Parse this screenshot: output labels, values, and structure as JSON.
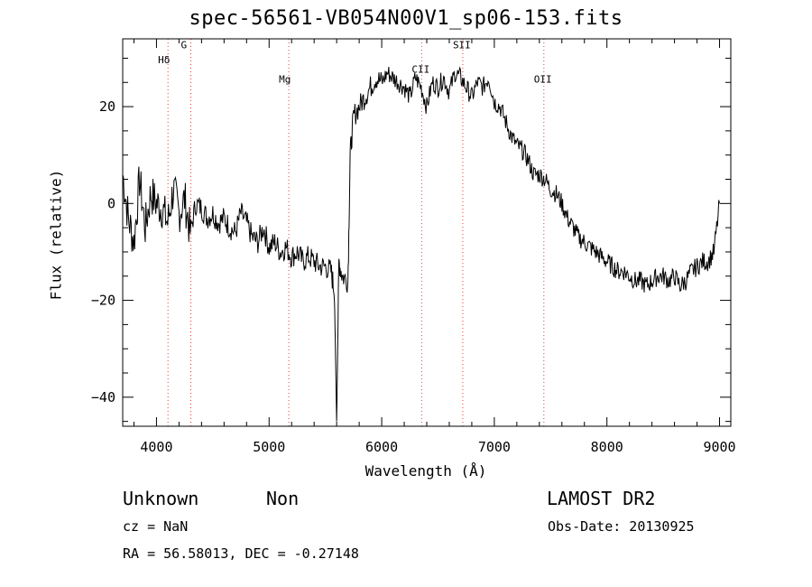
{
  "chart_data": {
    "type": "line",
    "title": "spec-56561-VB054N00V1_sp06-153.fits",
    "xlabel": "Wavelength (Å)",
    "ylabel": "Flux (relative)",
    "xlim": [
      3700,
      9100
    ],
    "ylim": [
      -46,
      34
    ],
    "xticks": [
      4000,
      5000,
      6000,
      7000,
      8000,
      9000
    ],
    "yticks": [
      -40,
      -20,
      0,
      20
    ],
    "series": [
      {
        "x": [
          3700,
          3750,
          3800,
          3850,
          3900,
          3950,
          4000,
          4050,
          4100,
          4150,
          4200,
          4250,
          4300,
          4350,
          4400,
          4450,
          4500,
          4550,
          4600,
          4650,
          4700,
          4750,
          4800,
          4850,
          4900,
          4950,
          5000,
          5050,
          5100,
          5150,
          5200,
          5250,
          5300,
          5350,
          5400,
          5450,
          5500,
          5550,
          5580,
          5600,
          5620,
          5650,
          5700,
          5720,
          5750,
          5800,
          5850,
          5900,
          5950,
          6000,
          6050,
          6100,
          6150,
          6200,
          6250,
          6300,
          6350,
          6400,
          6450,
          6500,
          6550,
          6600,
          6650,
          6700,
          6750,
          6800,
          6850,
          6900,
          6950,
          7000,
          7050,
          7100,
          7150,
          7200,
          7250,
          7300,
          7350,
          7400,
          7450,
          7500,
          7550,
          7600,
          7650,
          7700,
          7750,
          7800,
          7850,
          7900,
          7950,
          8000,
          8050,
          8100,
          8150,
          8200,
          8250,
          8300,
          8350,
          8400,
          8450,
          8500,
          8550,
          8600,
          8650,
          8700,
          8750,
          8800,
          8850,
          8900,
          8950,
          9000
        ],
        "y": [
          6,
          -3,
          -8,
          5,
          -5,
          2,
          0,
          -1,
          -4,
          3,
          -2,
          1,
          -6,
          0,
          -1,
          -3,
          -2,
          -4,
          -3,
          -5,
          -6,
          -2,
          -4,
          -7,
          -8,
          -5,
          -9,
          -8,
          -10,
          -9,
          -11,
          -10,
          -12,
          -11,
          -12,
          -13,
          -13,
          -14,
          -18,
          -45,
          -12,
          -15,
          -16,
          10,
          18,
          20,
          22,
          24,
          26,
          25,
          27,
          26,
          25,
          24,
          22,
          26,
          24,
          20,
          25,
          24,
          26,
          23,
          27,
          26,
          24,
          22,
          25,
          24,
          26,
          21,
          20,
          17,
          14,
          12,
          11,
          9,
          6,
          6,
          5,
          3,
          2,
          0,
          -3,
          -5,
          -7,
          -8,
          -9,
          -10,
          -11,
          -12,
          -13,
          -14,
          -14,
          -15,
          -16,
          -16,
          -17,
          -16,
          -15,
          -15,
          -16,
          -15,
          -17,
          -16,
          -14,
          -13,
          -12,
          -12,
          -10,
          0
        ]
      }
    ],
    "spectral_lines": [
      {
        "label": "Hδ",
        "wavelength": 4102
      },
      {
        "label": "G",
        "wavelength": 4305
      },
      {
        "label": "Mg",
        "wavelength": 5175
      },
      {
        "label": "CII",
        "wavelength": 6355
      },
      {
        "label": "SII",
        "wavelength": 6720
      },
      {
        "label": "OII",
        "wavelength": 7440
      }
    ],
    "line_label_y": [
      29,
      32,
      25,
      27,
      32,
      25
    ],
    "grid": false,
    "colors": {
      "series": "#000000",
      "line_markers": "#e04040",
      "axes": "#000000"
    }
  },
  "info": {
    "class": "Unknown",
    "subclass": "Non",
    "survey": "LAMOST DR2",
    "cz": "cz = NaN",
    "obs_date": "Obs-Date: 20130925",
    "coords": "RA =  56.58013, DEC =  -0.27148"
  }
}
